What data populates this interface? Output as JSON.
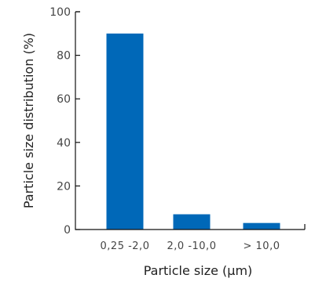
{
  "chart_data": {
    "type": "bar",
    "categories": [
      "0,25 -2,0",
      "2,0 -10,0",
      "> 10,0"
    ],
    "values": [
      90,
      7,
      3
    ],
    "title": "",
    "xlabel": "Particle size (µm)",
    "ylabel": "Particle size distribution (%)",
    "ylim": [
      0,
      100
    ],
    "yticks": [
      0,
      20,
      40,
      60,
      80,
      100
    ],
    "grid": false,
    "legend": "none",
    "bar_color": "#0068b8"
  }
}
